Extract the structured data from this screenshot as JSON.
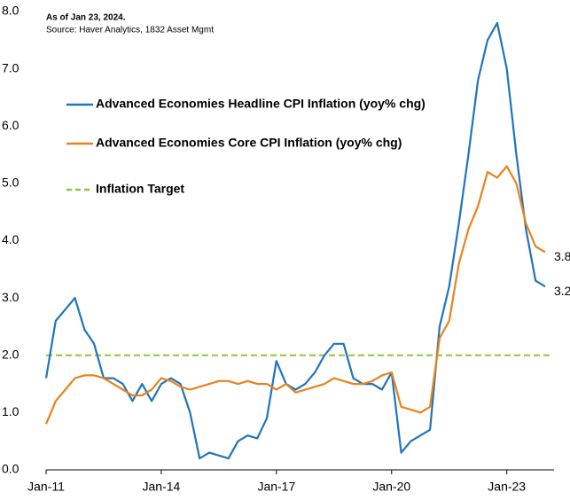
{
  "chart_data": {
    "type": "line",
    "annotations": [
      "As of Jan 23, 2024.",
      "Source: Haver Analytics, 1832 Asset Mgmt"
    ],
    "categories": [
      "Jan-11",
      null,
      null,
      null,
      null,
      null,
      null,
      null,
      null,
      null,
      null,
      null,
      "Jan-14",
      null,
      null,
      null,
      null,
      null,
      null,
      null,
      null,
      null,
      null,
      null,
      "Jan-17",
      null,
      null,
      null,
      null,
      null,
      null,
      null,
      null,
      null,
      null,
      null,
      "Jan-20",
      null,
      null,
      null,
      null,
      null,
      null,
      null,
      null,
      null,
      null,
      null,
      "Jan-23",
      null,
      null,
      null,
      null
    ],
    "series": [
      {
        "name": "Advanced Economies Headline CPI Inflation (yoy% chg)",
        "color": "#1f74bd",
        "values": [
          1.6,
          2.6,
          2.8,
          3.0,
          2.45,
          2.2,
          1.6,
          1.6,
          1.5,
          1.2,
          1.5,
          1.2,
          1.5,
          1.6,
          1.5,
          1.0,
          0.2,
          0.3,
          0.25,
          0.2,
          0.5,
          0.6,
          0.55,
          0.9,
          1.9,
          1.5,
          1.4,
          1.5,
          1.7,
          2.0,
          2.2,
          2.2,
          1.6,
          1.5,
          1.5,
          1.4,
          1.7,
          0.3,
          0.5,
          0.6,
          0.7,
          2.5,
          3.2,
          4.3,
          5.5,
          6.8,
          7.5,
          7.8,
          7.0,
          5.5,
          4.2,
          3.3,
          3.2
        ],
        "end_label": "3.2"
      },
      {
        "name": "Advanced Economies Core CPI Inflation (yoy% chg)",
        "color": "#e8821e",
        "values": [
          0.8,
          1.2,
          1.4,
          1.6,
          1.65,
          1.65,
          1.6,
          1.5,
          1.4,
          1.3,
          1.3,
          1.4,
          1.6,
          1.55,
          1.45,
          1.4,
          1.45,
          1.5,
          1.55,
          1.55,
          1.5,
          1.55,
          1.5,
          1.5,
          1.4,
          1.5,
          1.35,
          1.4,
          1.45,
          1.5,
          1.6,
          1.55,
          1.5,
          1.5,
          1.55,
          1.65,
          1.7,
          1.1,
          1.05,
          1.0,
          1.1,
          2.3,
          2.6,
          3.6,
          4.2,
          4.6,
          5.2,
          5.1,
          5.3,
          5.0,
          4.3,
          3.9,
          3.8
        ],
        "end_label": "3.8"
      }
    ],
    "reference_line": {
      "name": "Inflation Target",
      "value": 2.0,
      "color": "#8dc63f"
    },
    "ylim": [
      0,
      8
    ],
    "yticks": [
      {
        "value": 0,
        "label": "0.0"
      },
      {
        "value": 1,
        "label": "1.0"
      },
      {
        "value": 2,
        "label": "2.0"
      },
      {
        "value": 3,
        "label": "3.0"
      },
      {
        "value": 4,
        "label": "4.0"
      },
      {
        "value": 5,
        "label": "5.0"
      },
      {
        "value": 6,
        "label": "6.0"
      },
      {
        "value": 7,
        "label": "7.0"
      },
      {
        "value": 8,
        "label": "8.0"
      }
    ]
  }
}
